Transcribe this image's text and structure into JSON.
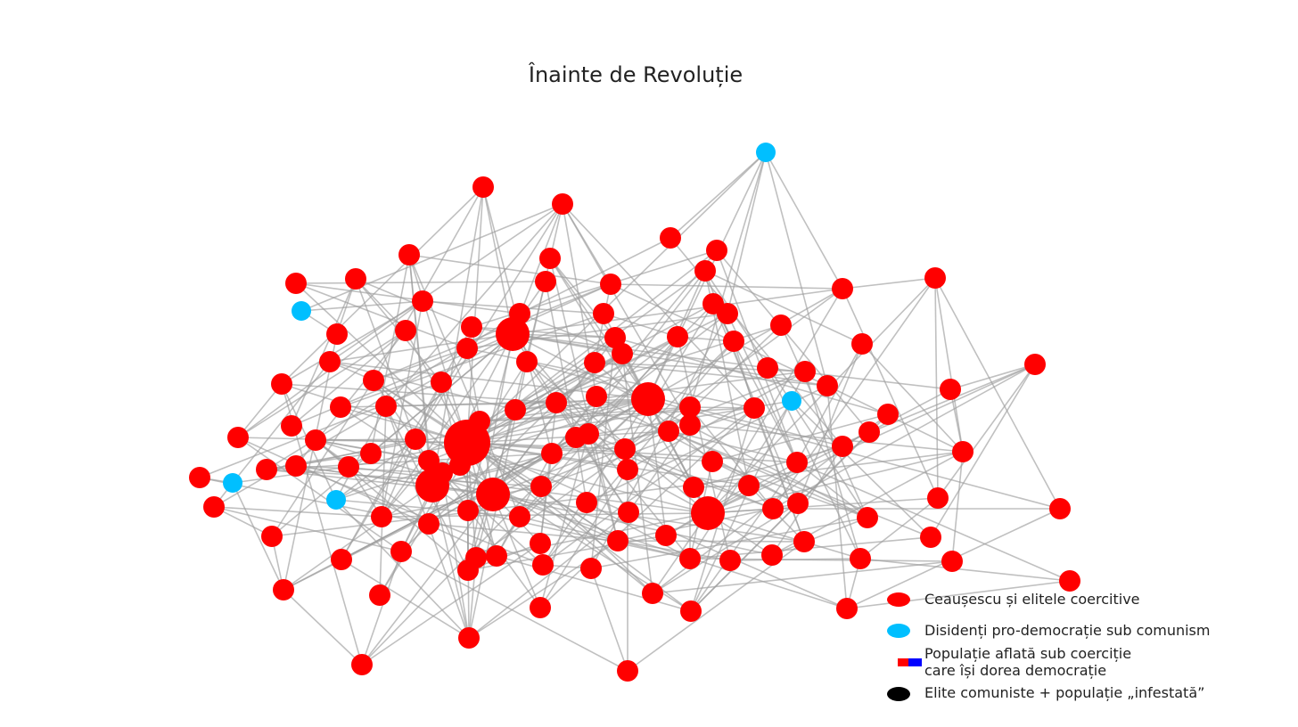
{
  "title": "Înainte de Revoluție",
  "colors": {
    "elite": "#ff0000",
    "dissident": "#00bfff",
    "population_red": "#ff0000",
    "population_blue": "#0000ff",
    "infected": "#000000",
    "edge": "#9e9e9e"
  },
  "legend": [
    {
      "kind": "ellipse",
      "color": "#ff0000",
      "lines": [
        "Ceaușescu și elitele coercitive"
      ]
    },
    {
      "kind": "ellipse",
      "color": "#00bfff",
      "lines": [
        "Disidenți pro-democrație sub comunism"
      ]
    },
    {
      "kind": "split",
      "colors": [
        "#ff0000",
        "#0000ff"
      ],
      "lines": [
        "Populație aflată sub coerciție",
        "care își dorea democrație"
      ]
    },
    {
      "kind": "ellipse",
      "color": "#000000",
      "lines": [
        "Elite comuniste + populație „infestată”"
      ]
    }
  ]
}
